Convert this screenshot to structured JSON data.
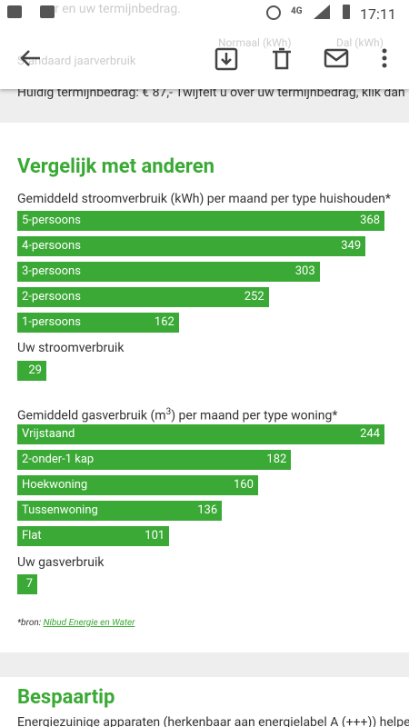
{
  "status_bar": {
    "network": "4G",
    "time": "17:11"
  },
  "background_texts": [
    "r en uw termijnbedrag.",
    "Standaard jaarverbruik",
    "Normaal (kWh)",
    "Dal (kWh)"
  ],
  "notice": "Huidig termijnbedrag: € 87,- Twijfelt u over uw termijnbedrag, klik dan",
  "compare": {
    "title": "Vergelijk met anderen",
    "electricity": {
      "title": "Gemiddeld stroomverbruik (kWh) per maand per type huishouden*",
      "categories": [
        "5-persoons",
        "4-persoons",
        "3-persoons",
        "2-persoons",
        "1-persoons"
      ],
      "values": [
        368,
        349,
        303,
        252,
        162
      ],
      "own_label": "Uw stroomverbruik",
      "own_value": 29,
      "color": "#3aa935"
    },
    "gas": {
      "title_parts": [
        "Gemiddeld gasverbruik (m",
        "3",
        ") per maand per type woning*"
      ],
      "categories": [
        "Vrijstaand",
        "2-onder-1 kap",
        "Hoekwoning",
        "Tussenwoning",
        "Flat"
      ],
      "values": [
        244,
        182,
        160,
        136,
        101
      ],
      "own_label": "Uw gasverbruik",
      "own_value": 7,
      "color": "#3aa935"
    },
    "source_prefix": "*bron:",
    "source_link": "Nibud Energie en Water"
  },
  "tip": {
    "title": "Bespaartip",
    "text": "Energiezuinige apparaten (herkenbaar aan energielabel A (+++)) helpe"
  }
}
